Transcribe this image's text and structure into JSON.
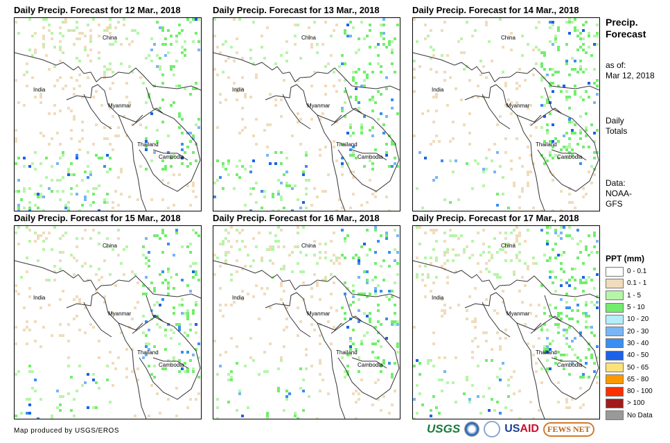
{
  "panels": [
    {
      "title": "Daily Precip. Forecast for 12 Mar., 2018",
      "wet": 0.8,
      "south": 1.0,
      "east": 0.6
    },
    {
      "title": "Daily Precip. Forecast for 13 Mar., 2018",
      "wet": 0.6,
      "south": 0.6,
      "east": 0.7
    },
    {
      "title": "Daily Precip. Forecast for 14 Mar., 2018",
      "wet": 0.5,
      "south": 0.3,
      "east": 1.0
    },
    {
      "title": "Daily Precip. Forecast for 15 Mar., 2018",
      "wet": 0.6,
      "south": 0.4,
      "east": 0.8
    },
    {
      "title": "Daily Precip. Forecast for 16 Mar., 2018",
      "wet": 0.9,
      "south": 0.4,
      "east": 0.9
    },
    {
      "title": "Daily Precip. Forecast for 17 Mar., 2018",
      "wet": 1.0,
      "south": 0.4,
      "east": 1.0
    }
  ],
  "map_labels": {
    "china": "China",
    "india": "India",
    "myanmar": "Myanmar",
    "thailand": "Thailand",
    "cambodia": "Cambodia"
  },
  "side": {
    "title1": "Precip.",
    "title2": "Forecast",
    "asof1": "as of:",
    "asof2": "Mar 12, 2018",
    "totals1": "Daily",
    "totals2": "Totals",
    "data1": "Data:",
    "data2": "NOAA-",
    "data3": "GFS"
  },
  "legend": {
    "title": "PPT (mm)",
    "items": [
      {
        "label": "0 - 0.1",
        "color": "#ffffff"
      },
      {
        "label": "0.1 - 1",
        "color": "#f0dcbc"
      },
      {
        "label": "1 - 5",
        "color": "#b6f5a8"
      },
      {
        "label": "5 - 10",
        "color": "#72ee6c"
      },
      {
        "label": "10 - 20",
        "color": "#b4eefa"
      },
      {
        "label": "20 - 30",
        "color": "#78b6f8"
      },
      {
        "label": "30 - 40",
        "color": "#3c8ef0"
      },
      {
        "label": "40 - 50",
        "color": "#1c62e8"
      },
      {
        "label": "50 - 65",
        "color": "#fde27a"
      },
      {
        "label": "65 - 80",
        "color": "#fb9a00"
      },
      {
        "label": "80 - 100",
        "color": "#fb3000"
      },
      {
        "label": "> 100",
        "color": "#a01c1c"
      },
      {
        "label": "No Data",
        "color": "#999999"
      }
    ]
  },
  "footer": "Map produced by USGS/EROS",
  "logos": {
    "usgs": "USGS",
    "usaid": "US",
    "usaid2": "AID",
    "fews": "FEWS NET"
  }
}
